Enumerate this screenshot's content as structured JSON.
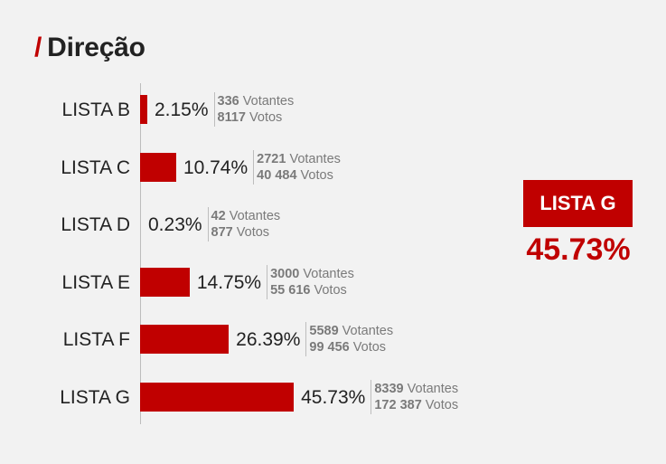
{
  "page": {
    "title_slash": "/",
    "title": "Direção"
  },
  "chart_data": {
    "type": "bar",
    "orientation": "horizontal",
    "categories": [
      "LISTA B",
      "LISTA C",
      "LISTA D",
      "LISTA E",
      "LISTA F",
      "LISTA G"
    ],
    "values": [
      2.15,
      10.74,
      0.23,
      14.75,
      26.39,
      45.73
    ],
    "value_labels": [
      "2.15%",
      "10.74%",
      "0.23%",
      "14.75%",
      "26.39%",
      "45.73%"
    ],
    "votantes_values": [
      "336",
      "2721",
      "42",
      "3000",
      "5589",
      "8339"
    ],
    "votos_values": [
      "8117",
      "40 484",
      "877",
      "55 616",
      "99 456",
      "172 387"
    ],
    "votantes_label": "Votantes",
    "votos_label": "Votos",
    "title": "",
    "xlabel": "",
    "ylabel": "",
    "colors": {
      "bar": "#c00000"
    }
  },
  "highlight": {
    "label": "LISTA G",
    "value": "45.73%"
  }
}
